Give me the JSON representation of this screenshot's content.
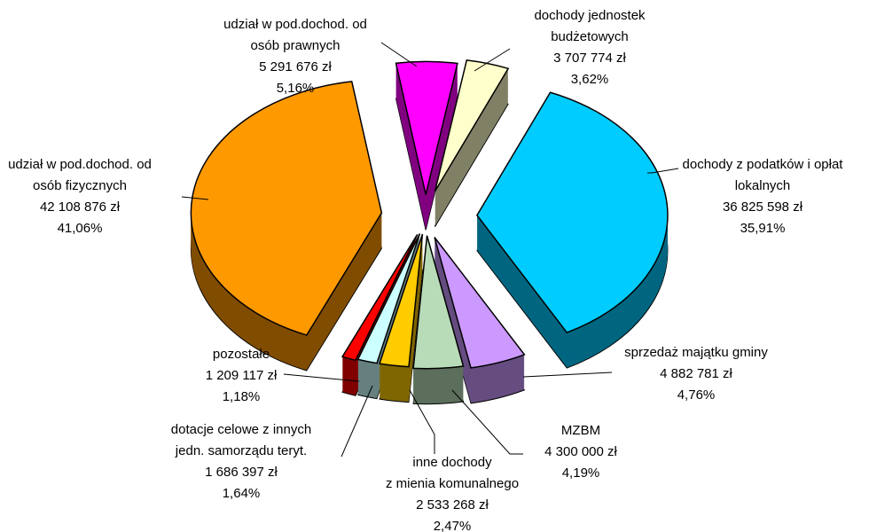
{
  "chart_data": {
    "type": "pie",
    "categories": [
      [
        "udział w pod.dochod. od",
        "osób prawnych"
      ],
      [
        "dochody jednostek",
        "budżetowych"
      ],
      [
        "dochody z podatków i opłat",
        "lokalnych"
      ],
      [
        "sprzedaż majątku gminy"
      ],
      [
        "MZBM"
      ],
      [
        "inne dochody",
        "z mienia komunalnego"
      ],
      [
        "dotacje celowe z innych",
        "jedn. samorządu teryt."
      ],
      [
        "pozostałe"
      ],
      [
        "udział w pod.dochod. od",
        "osób fizycznych"
      ]
    ],
    "values": [
      5291676,
      3707774,
      36825598,
      4882781,
      4300000,
      2533268,
      1686397,
      1209117,
      42108876
    ],
    "value_labels": [
      "5 291 676 zł",
      "3 707 774 zł",
      "36 825 598 zł",
      "4 882 781 zł",
      "4 300 000 zł",
      "2 533 268 zł",
      "1 686 397 zł",
      "1 209 117 zł",
      "42 108 876 zł"
    ],
    "percentages": [
      5.16,
      3.62,
      35.91,
      4.76,
      4.19,
      2.47,
      1.64,
      1.18,
      41.06
    ],
    "percentage_labels": [
      "5,16%",
      "3,62%",
      "35,91%",
      "4,76%",
      "4,19%",
      "2,47%",
      "1,64%",
      "1,18%",
      "41,06%"
    ],
    "colors": [
      "#ff00ff",
      "#ffffcc",
      "#00ccff",
      "#cc99ff",
      "#b8dcb8",
      "#ffcc00",
      "#ccffff",
      "#ff0000",
      "#ff9900"
    ]
  }
}
